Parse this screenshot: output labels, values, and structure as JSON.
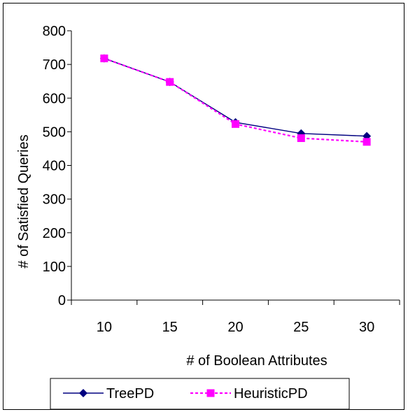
{
  "chart_data": {
    "type": "line",
    "title": "",
    "xlabel": "# of Boolean Attributes",
    "ylabel": "# of Satisfied Queries",
    "categories": [
      "10",
      "15",
      "20",
      "25",
      "30"
    ],
    "y_ticks": [
      "0",
      "100",
      "200",
      "300",
      "400",
      "500",
      "600",
      "700",
      "800"
    ],
    "ylim": [
      0,
      800
    ],
    "grid": false,
    "legend_position": "bottom",
    "series": [
      {
        "name": "TreePD",
        "values": [
          718,
          648,
          528,
          495,
          487
        ],
        "color": "#000080",
        "marker": "diamond",
        "line_style": "solid"
      },
      {
        "name": "HeuristicPD",
        "values": [
          718,
          648,
          523,
          481,
          470
        ],
        "color": "#ff00ff",
        "marker": "square",
        "line_style": "dashed"
      }
    ]
  }
}
